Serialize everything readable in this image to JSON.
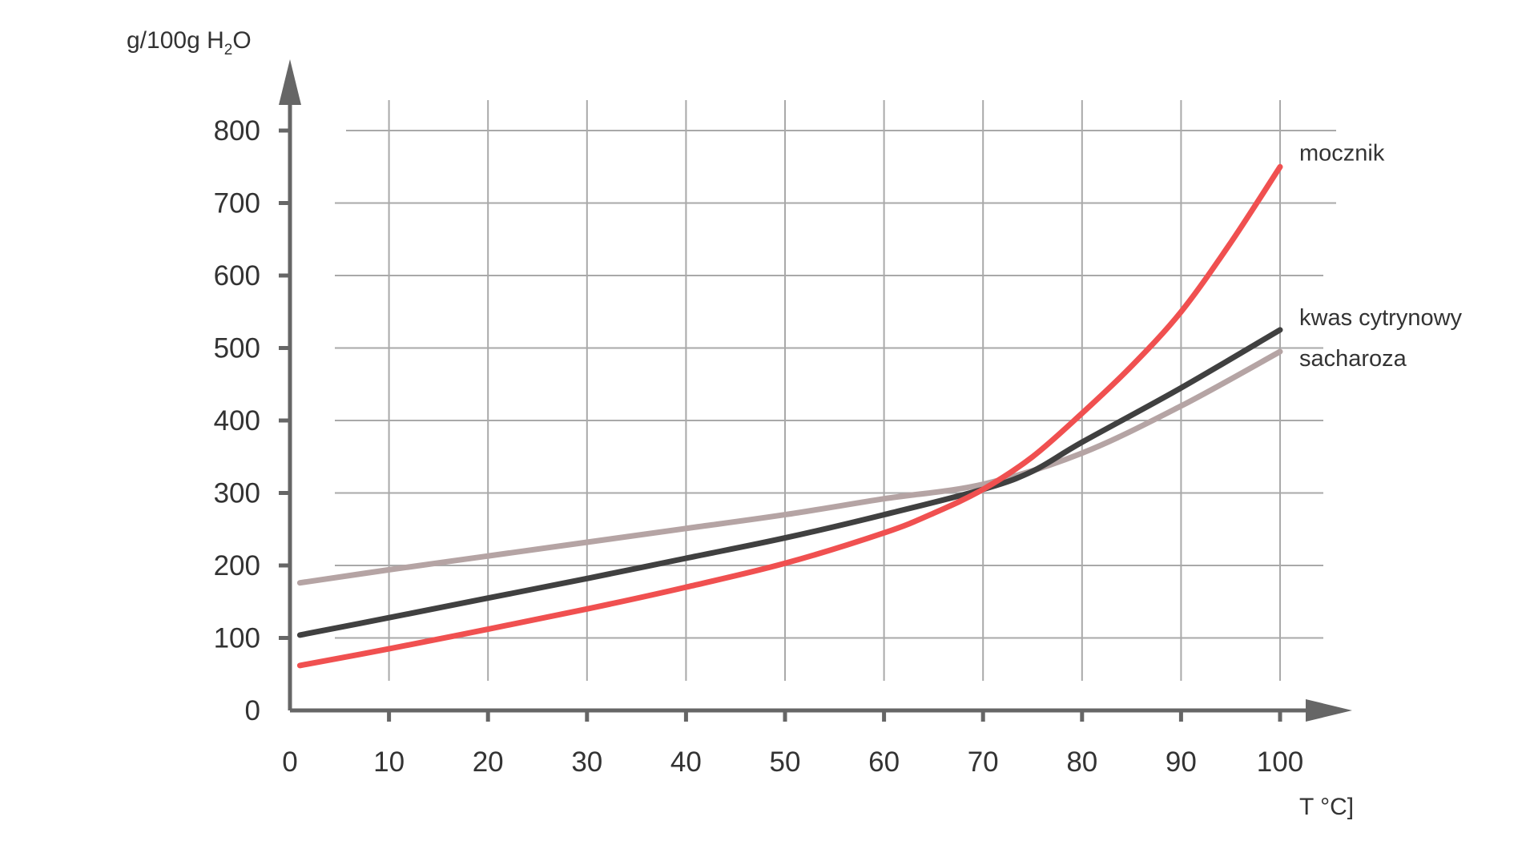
{
  "chart_data": {
    "type": "line",
    "title": "",
    "ylabel": "g/100g H₂O",
    "ylabel_parts": {
      "main": "g/100g H",
      "sub": "2",
      "tail": "O"
    },
    "xlabel": "T °C]",
    "xlim": [
      0,
      100
    ],
    "ylim": [
      0,
      800
    ],
    "x_ticks": [
      "0",
      "10",
      "20",
      "30",
      "40",
      "50",
      "60",
      "70",
      "80",
      "90",
      "100"
    ],
    "y_ticks": [
      "0",
      "100",
      "200",
      "300",
      "400",
      "500",
      "600",
      "700",
      "800"
    ],
    "grid": true,
    "legend": "inline labels at line ends (right)",
    "series": [
      {
        "name": "mocznik",
        "color": "#f05050",
        "x": [
          1,
          10,
          20,
          30,
          40,
          50,
          60,
          65,
          70,
          75,
          80,
          85,
          90,
          95,
          100
        ],
        "y": [
          62,
          85,
          112,
          140,
          170,
          203,
          245,
          272,
          305,
          350,
          410,
          475,
          550,
          645,
          750
        ]
      },
      {
        "name": "kwas cytrynowy",
        "color": "#404040",
        "x": [
          1,
          10,
          20,
          30,
          40,
          50,
          60,
          70,
          75,
          80,
          90,
          100
        ],
        "y": [
          104,
          128,
          155,
          182,
          210,
          238,
          270,
          305,
          330,
          370,
          445,
          525
        ]
      },
      {
        "name": "sacharoza",
        "color": "#b5a4a4",
        "x": [
          1,
          10,
          20,
          30,
          40,
          50,
          60,
          70,
          80,
          90,
          100
        ],
        "y": [
          176,
          194,
          213,
          232,
          251,
          270,
          292,
          312,
          355,
          420,
          495
        ]
      }
    ]
  }
}
